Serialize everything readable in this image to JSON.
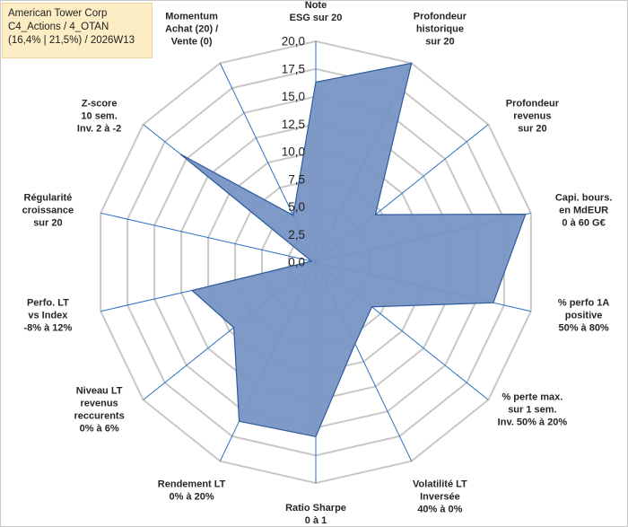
{
  "header": {
    "title_lines": [
      "American Tower Corp",
      "C4_Actions / 4_OTAN",
      "(16,4% | 21,5%) / 2026W13"
    ]
  },
  "chart_data": {
    "type": "radar",
    "title": "American Tower Corp",
    "rmin": 0,
    "rmax": 20,
    "ticks": [
      0,
      2.5,
      5,
      7.5,
      10,
      12.5,
      15,
      17.5,
      20
    ],
    "tick_labels": [
      "0,0",
      "2,5",
      "5,0",
      "7,5",
      "10,0",
      "12,5",
      "15,0",
      "17,5",
      "20,0"
    ],
    "axes": [
      {
        "label": [
          "Note",
          "ESG sur 20"
        ],
        "value": 16.3
      },
      {
        "label": [
          "Profondeur",
          "historique",
          "sur 20"
        ],
        "value": 20
      },
      {
        "label": [
          "Profondeur",
          "revenus",
          "sur 20"
        ],
        "value": 6.9
      },
      {
        "label": [
          "Capi. bours.",
          "en MdEUR",
          "0 à 60 G€"
        ],
        "value": 19.5
      },
      {
        "label": [
          "% perfo 1A",
          "positive",
          "50% à 80%"
        ],
        "value": 16.5
      },
      {
        "label": [
          "% perte max.",
          "sur 1 sem.",
          "Inv. 50% à 20%"
        ],
        "value": 6.5
      },
      {
        "label": [
          "Volatilité LT",
          "Inversée",
          "40% à 0%"
        ],
        "value": 8.2
      },
      {
        "label": [
          "Ratio Sharpe",
          "0 à 1"
        ],
        "value": 15.8
      },
      {
        "label": [
          "Rendement LT",
          "0% à 20%"
        ],
        "value": 16.0
      },
      {
        "label": [
          "Niveau LT",
          "revenus",
          "reccurents",
          "0% à 6%"
        ],
        "value": 9.5
      },
      {
        "label": [
          "Perfo. LT",
          "vs Index",
          "-8% à 12%"
        ],
        "value": 11.5
      },
      {
        "label": [
          "Régularité",
          "croissance",
          "sur 20"
        ],
        "value": 0.4
      },
      {
        "label": [
          "Z-score",
          "10 sem.",
          "Inv. 2 à -2"
        ],
        "value": 15.7
      },
      {
        "label": [
          "Momentum",
          "Achat (20) /",
          "Vente (0)"
        ],
        "value": 4.7
      }
    ],
    "colors": {
      "fill": "#7895c4",
      "stroke": "#2e5b9c",
      "grid": "#c8c8c8",
      "spokes": "#2e6fc4"
    }
  }
}
